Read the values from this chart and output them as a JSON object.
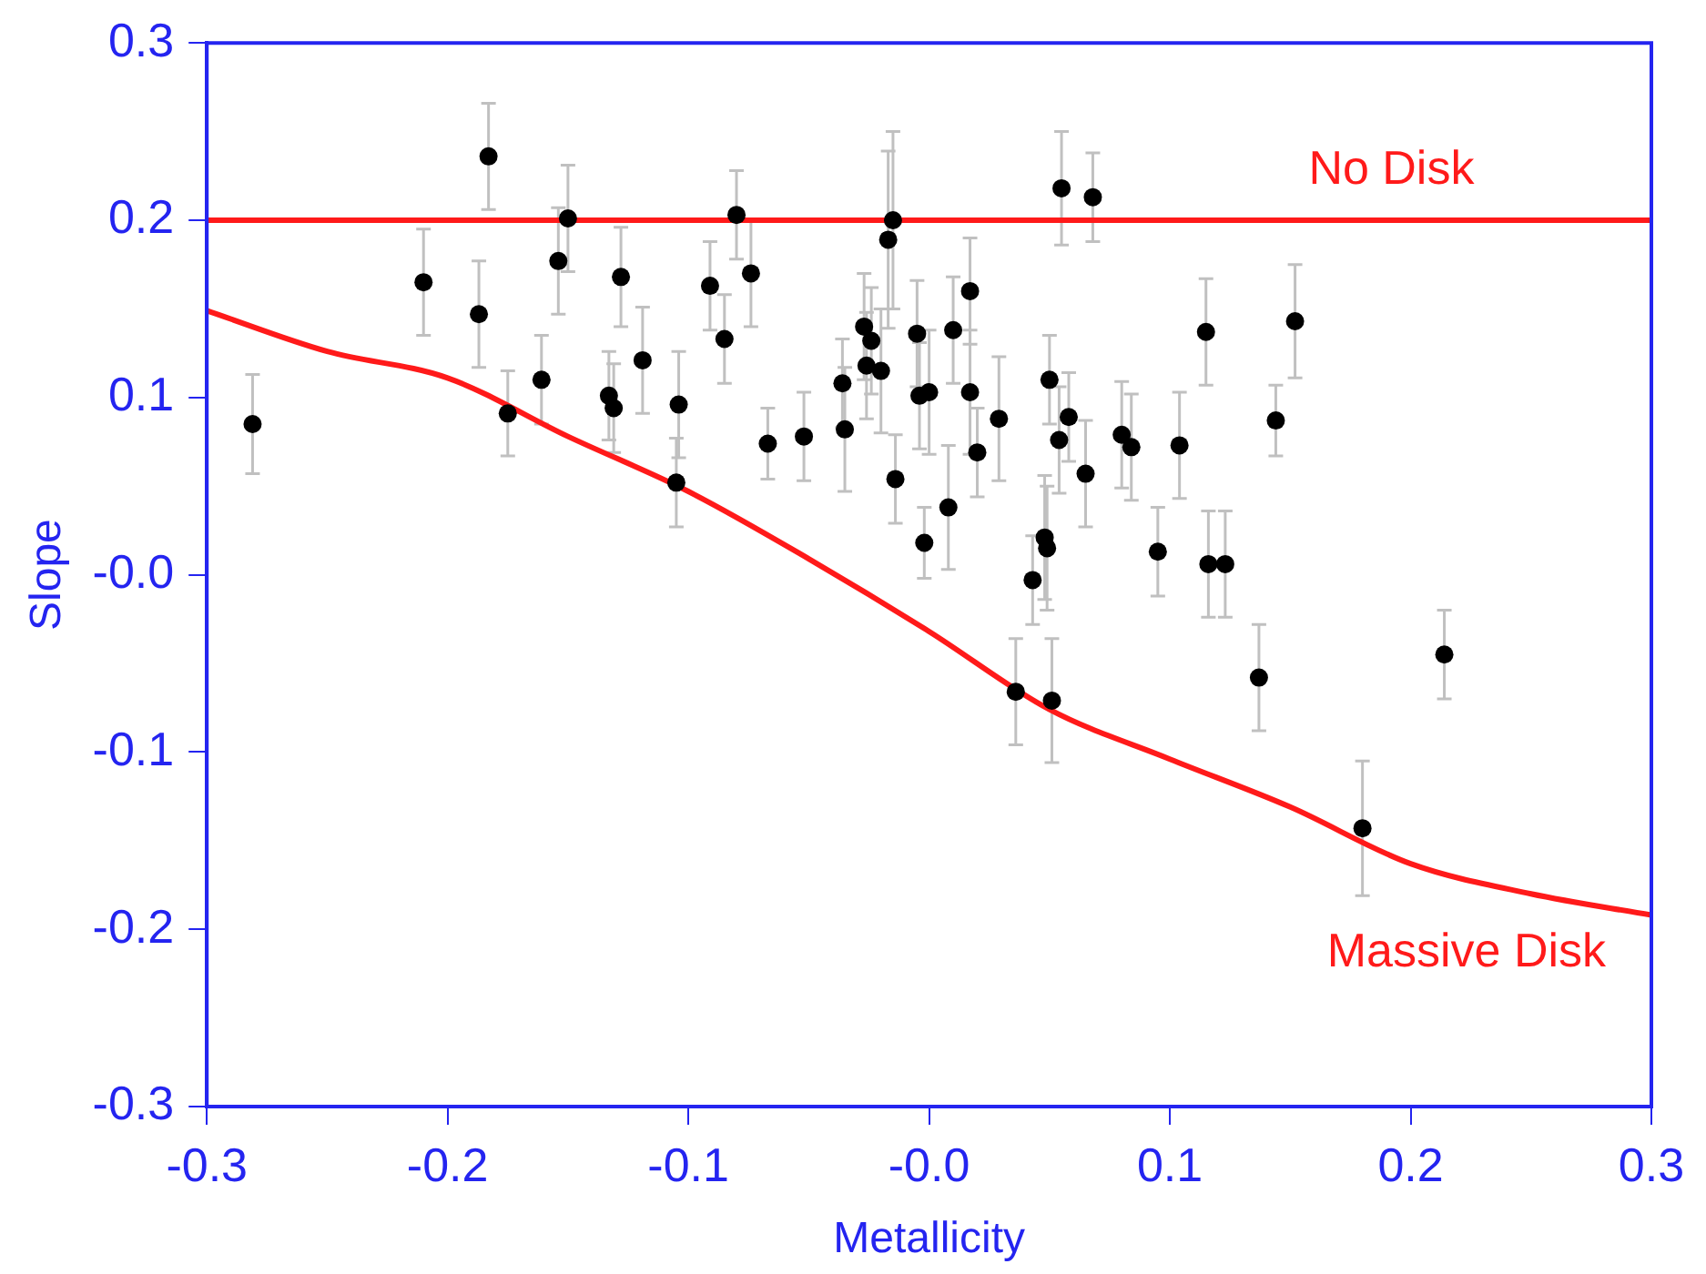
{
  "chart_data": {
    "type": "scatter",
    "xlabel": "Metallicity",
    "ylabel": "Slope",
    "xlim": [
      -0.3,
      0.3
    ],
    "ylim": [
      -0.3,
      0.3
    ],
    "xticks": [
      -0.3,
      -0.2,
      -0.1,
      {
        "value": 0,
        "label": "-0.0"
      },
      0.1,
      0.2,
      0.3
    ],
    "yticks": [
      -0.3,
      -0.2,
      -0.1,
      {
        "value": 0,
        "label": "-0.0"
      },
      0.1,
      0.2,
      0.3
    ],
    "grid": false,
    "legend": false,
    "marker": "circle",
    "ref_lines": [
      {
        "axis": "y",
        "value": 0.2,
        "label": "No Disk",
        "color": "#ff1a1a"
      }
    ],
    "series": [
      {
        "type": "scatter",
        "color": "#000000",
        "x": [
          -0.281,
          -0.21,
          -0.187,
          -0.183,
          -0.175,
          -0.161,
          -0.154,
          -0.15,
          -0.133,
          -0.131,
          -0.128,
          -0.119,
          -0.105,
          -0.104,
          -0.091,
          -0.085,
          -0.08,
          -0.074,
          -0.067,
          -0.052,
          -0.036,
          -0.035,
          -0.027,
          -0.024,
          -0.026,
          -0.02,
          -0.017,
          -0.015,
          -0.014,
          -0.005,
          -0.004,
          -0.002,
          0.0,
          0.008,
          0.01,
          0.017,
          0.017,
          0.02,
          0.029,
          0.036,
          0.043,
          0.048,
          0.049,
          0.05,
          0.051,
          0.054,
          0.055,
          0.058,
          0.065,
          0.068,
          0.08,
          0.084,
          0.095,
          0.104,
          0.115,
          0.116,
          0.123,
          0.137,
          0.144,
          0.152,
          0.18,
          0.214
        ],
        "values": [
          0.085,
          0.165,
          0.147,
          0.236,
          0.091,
          0.11,
          0.177,
          0.201,
          0.101,
          0.094,
          0.168,
          0.121,
          0.052,
          0.096,
          0.163,
          0.133,
          0.203,
          0.17,
          0.074,
          0.078,
          0.108,
          0.082,
          0.14,
          0.132,
          0.118,
          0.115,
          0.189,
          0.2,
          0.054,
          0.136,
          0.101,
          0.018,
          0.103,
          0.038,
          0.138,
          0.16,
          0.103,
          0.069,
          0.088,
          -0.066,
          -0.003,
          0.021,
          0.015,
          0.11,
          -0.071,
          0.076,
          0.218,
          0.089,
          0.057,
          0.213,
          0.079,
          0.072,
          0.013,
          0.073,
          0.137,
          0.006,
          0.006,
          -0.058,
          0.087,
          0.143,
          -0.143,
          -0.045
        ],
        "errors": [
          0.028,
          0.03,
          0.03,
          0.03,
          0.024,
          0.025,
          0.03,
          0.03,
          0.025,
          0.025,
          0.028,
          0.03,
          0.025,
          0.03,
          0.025,
          0.025,
          0.025,
          0.03,
          0.02,
          0.025,
          0.025,
          0.035,
          0.03,
          0.03,
          0.03,
          0.035,
          0.05,
          0.05,
          0.025,
          0.03,
          0.03,
          0.02,
          0.035,
          0.035,
          0.03,
          0.03,
          0.035,
          0.025,
          0.035,
          0.03,
          0.025,
          0.035,
          0.035,
          0.025,
          0.035,
          0.03,
          0.032,
          0.025,
          0.03,
          0.025,
          0.03,
          0.03,
          0.025,
          0.03,
          0.03,
          0.03,
          0.03,
          0.03,
          0.02,
          0.032,
          0.038,
          0.025
        ]
      },
      {
        "type": "line",
        "name": "Massive Disk",
        "color": "#ff1a1a",
        "marker": "none",
        "x": [
          -0.3,
          -0.25,
          -0.2,
          -0.15,
          -0.1,
          -0.05,
          0.0,
          0.05,
          0.1,
          0.15,
          0.2,
          0.25,
          0.3
        ],
        "values": [
          0.149,
          0.126,
          0.111,
          0.078,
          0.047,
          0.009,
          -0.032,
          -0.076,
          -0.104,
          -0.131,
          -0.163,
          -0.18,
          -0.192
        ]
      }
    ]
  }
}
